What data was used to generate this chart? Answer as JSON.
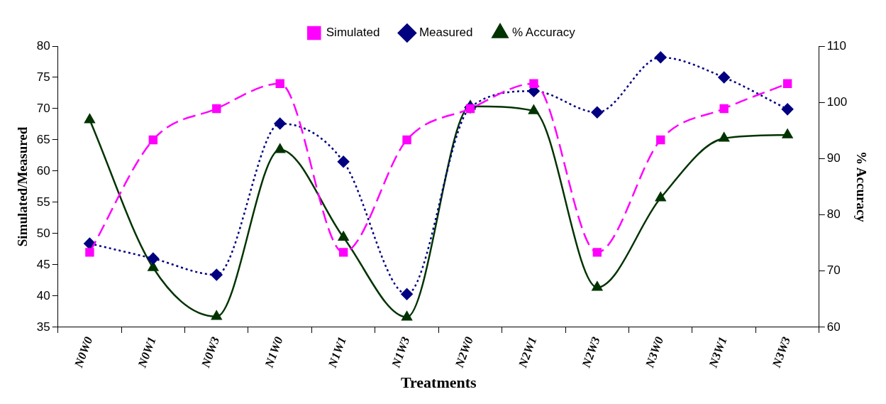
{
  "chart_data": {
    "type": "line",
    "xlabel": "Treatments",
    "ylabel": "Simulated/Measured",
    "y2label": "% Accuracy",
    "categories": [
      "N0W0",
      "N0W1",
      "N0W3",
      "N1W0",
      "N1W1",
      "N1W3",
      "N2W0",
      "N2W1",
      "N2W3",
      "N3W0",
      "N3W1",
      "N3W3"
    ],
    "series": [
      {
        "name": "Simulated",
        "color": "#ff00ff",
        "marker": "square",
        "line_style": "dashed",
        "values": [
          47,
          65,
          70,
          74,
          47,
          65,
          70,
          74,
          47,
          65,
          70,
          74
        ]
      },
      {
        "name": "Measured",
        "color": "#000080",
        "marker": "diamond",
        "line_style": "dotted",
        "values": [
          48.4,
          46.0,
          43.4,
          67.6,
          61.5,
          40.3,
          70.2,
          72.8,
          69.4,
          78.2,
          75.0,
          69.9
        ]
      },
      {
        "name": "% Accuracy",
        "color": "#003300",
        "marker": "triangle",
        "line_style": "solid",
        "axis": "y2",
        "values": [
          96.9,
          70.6,
          61.9,
          91.6,
          76.0,
          61.8,
          99.3,
          98.5,
          67.1,
          83.0,
          93.6,
          94.2
        ]
      }
    ],
    "ylim": [
      35,
      80
    ],
    "yticks": [
      35,
      40,
      45,
      50,
      55,
      60,
      65,
      70,
      75,
      80
    ],
    "y2lim": [
      60,
      110
    ],
    "y2ticks": [
      60,
      70,
      80,
      90,
      100,
      110
    ],
    "grid": false,
    "legend": "top"
  }
}
